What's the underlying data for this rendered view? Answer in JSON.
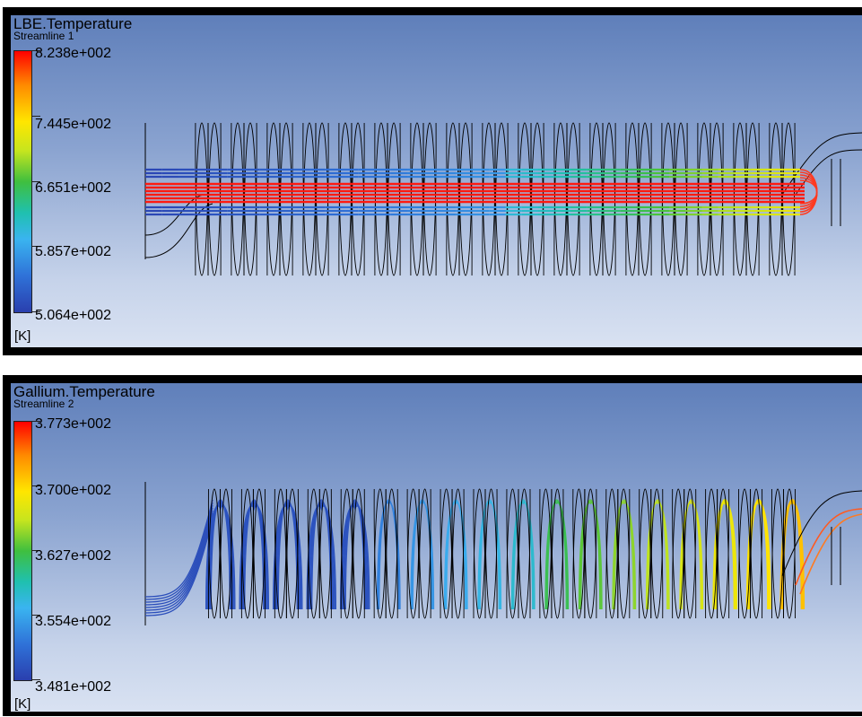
{
  "panels": [
    {
      "variable": "LBE.Temperature",
      "streamline": "Streamline 1",
      "unit": "[K]",
      "ticks": [
        "8.238e+002",
        "7.445e+002",
        "6.651e+002",
        "5.857e+002",
        "5.064e+002"
      ]
    },
    {
      "variable": "Gallium.Temperature",
      "streamline": "Streamline 2",
      "unit": "[K]",
      "ticks": [
        "3.773e+002",
        "3.700e+002",
        "3.627e+002",
        "3.554e+002",
        "3.481e+002"
      ]
    }
  ]
}
